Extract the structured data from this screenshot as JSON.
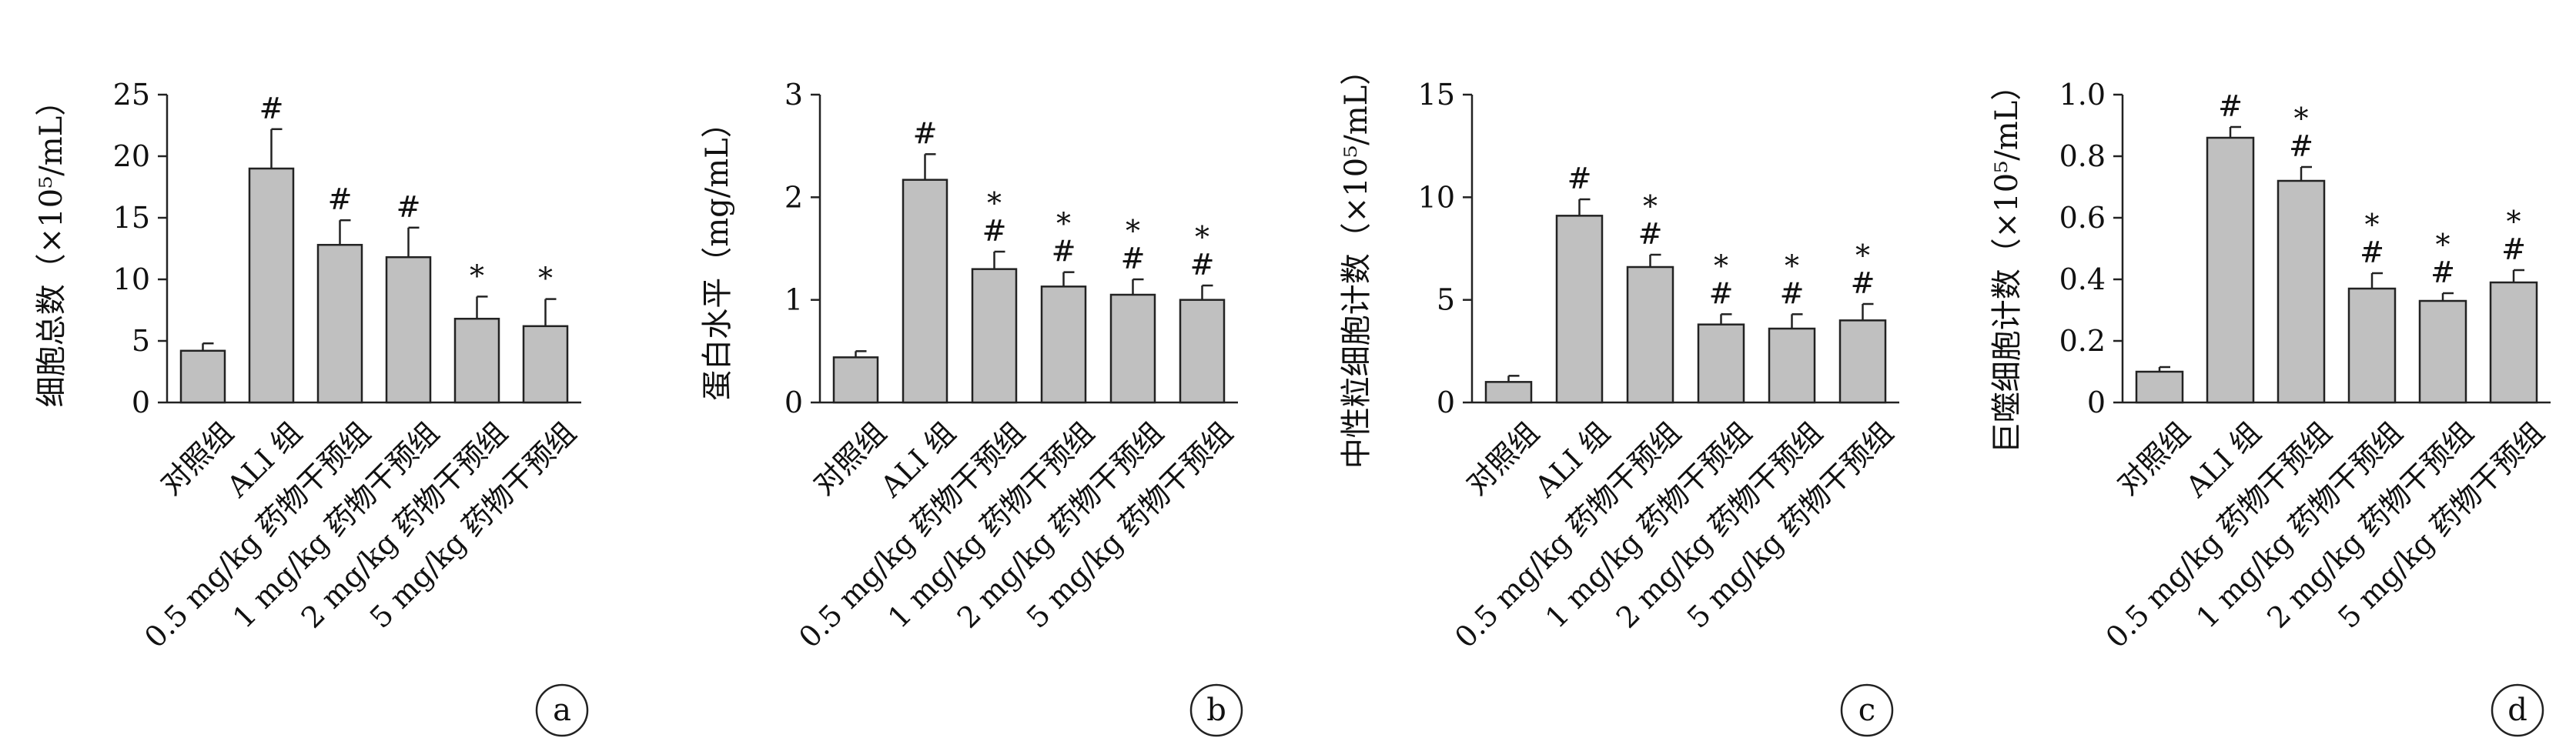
{
  "chart_data": [
    {
      "type": "bar",
      "panel_letter": "a",
      "ylabel": "细胞总数（×10⁵/mL）",
      "ylim": [
        0,
        25
      ],
      "yticks": [
        "0",
        "5",
        "10",
        "15",
        "20",
        "25"
      ],
      "categories": [
        "对照组",
        "ALI 组",
        "0.5 mg/kg 药物干预组",
        "1 mg/kg 药物干预组",
        "2 mg/kg 药物干预组",
        "5 mg/kg 药物干预组"
      ],
      "values": [
        4.2,
        19.0,
        12.8,
        11.8,
        6.8,
        6.2
      ],
      "errors": [
        0.6,
        3.2,
        2.0,
        2.4,
        1.8,
        2.2
      ],
      "significance": [
        "",
        "#",
        "#",
        "#",
        "*",
        "*"
      ],
      "bar_color": "#c0c0c0"
    },
    {
      "type": "bar",
      "panel_letter": "b",
      "ylabel": "蛋白水平（mg/mL）",
      "ylim": [
        0,
        3
      ],
      "yticks": [
        "0",
        "1",
        "2",
        "3"
      ],
      "categories": [
        "对照组",
        "ALI 组",
        "0.5 mg/kg 药物干预组",
        "1 mg/kg 药物干预组",
        "2 mg/kg 药物干预组",
        "5 mg/kg 药物干预组"
      ],
      "values": [
        0.44,
        2.17,
        1.3,
        1.13,
        1.05,
        1.0
      ],
      "errors": [
        0.06,
        0.25,
        0.17,
        0.14,
        0.15,
        0.14
      ],
      "significance": [
        "",
        "#",
        "#*",
        "#*",
        "#*",
        "#*"
      ],
      "bar_color": "#c0c0c0"
    },
    {
      "type": "bar",
      "panel_letter": "c",
      "ylabel": "中性粒细胞计数（×10⁵/mL）",
      "ylim": [
        0,
        15
      ],
      "yticks": [
        "0",
        "5",
        "10",
        "15"
      ],
      "categories": [
        "对照组",
        "ALI 组",
        "0.5 mg/kg 药物干预组",
        "1 mg/kg 药物干预组",
        "2 mg/kg 药物干预组",
        "5 mg/kg 药物干预组"
      ],
      "values": [
        1.0,
        9.1,
        6.6,
        3.8,
        3.6,
        4.0
      ],
      "errors": [
        0.3,
        0.8,
        0.6,
        0.5,
        0.7,
        0.8
      ],
      "significance": [
        "",
        "#",
        "#*",
        "#*",
        "#*",
        "#*"
      ],
      "bar_color": "#c0c0c0"
    },
    {
      "type": "bar",
      "panel_letter": "d",
      "ylabel": "巨噬细胞计数（×10⁵/mL）",
      "ylim": [
        0,
        1.0
      ],
      "yticks": [
        "0",
        "0.2",
        "0.4",
        "0.6",
        "0.8",
        "1.0"
      ],
      "categories": [
        "对照组",
        "ALI 组",
        "0.5 mg/kg 药物干预组",
        "1 mg/kg 药物干预组",
        "2 mg/kg 药物干预组",
        "5 mg/kg 药物干预组"
      ],
      "values": [
        0.1,
        0.86,
        0.72,
        0.37,
        0.33,
        0.39
      ],
      "errors": [
        0.015,
        0.035,
        0.045,
        0.05,
        0.025,
        0.04
      ],
      "significance": [
        "",
        "#",
        "#*",
        "#*",
        "#*",
        "#*"
      ],
      "bar_color": "#c0c0c0"
    }
  ]
}
